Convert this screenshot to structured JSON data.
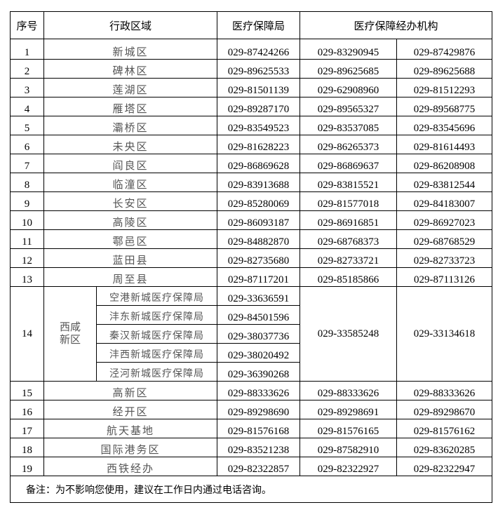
{
  "header": {
    "index": "序号",
    "region": "行政区域",
    "bureau": "医疗保障局",
    "agency": "医疗保障经办机构"
  },
  "rows": [
    {
      "no": "1",
      "name": "新城区",
      "bureau": "029-87424266",
      "agency1": "029-83290945",
      "agency2": "029-87429876"
    },
    {
      "no": "2",
      "name": "碑林区",
      "bureau": "029-89625533",
      "agency1": "029-89625685",
      "agency2": "029-89625688"
    },
    {
      "no": "3",
      "name": "莲湖区",
      "bureau": "029-81501139",
      "agency1": "029-62908960",
      "agency2": "029-81512293"
    },
    {
      "no": "4",
      "name": "雁塔区",
      "bureau": "029-89287170",
      "agency1": "029-89565327",
      "agency2": "029-89568775"
    },
    {
      "no": "5",
      "name": "灞桥区",
      "bureau": "029-83549523",
      "agency1": "029-83537085",
      "agency2": "029-83545696"
    },
    {
      "no": "6",
      "name": "未央区",
      "bureau": "029-81628223",
      "agency1": "029-86265373",
      "agency2": "029-81614493"
    },
    {
      "no": "7",
      "name": "阎良区",
      "bureau": "029-86869628",
      "agency1": "029-86869637",
      "agency2": "029-86208908"
    },
    {
      "no": "8",
      "name": "临潼区",
      "bureau": "029-83913688",
      "agency1": "029-83815521",
      "agency2": "029-83812544"
    },
    {
      "no": "9",
      "name": "长安区",
      "bureau": "029-85280069",
      "agency1": "029-81577018",
      "agency2": "029-84183007"
    },
    {
      "no": "10",
      "name": "高陵区",
      "bureau": "029-86093187",
      "agency1": "029-86916851",
      "agency2": "029-86927023"
    },
    {
      "no": "11",
      "name": "鄠邑区",
      "bureau": "029-84882870",
      "agency1": "029-68768373",
      "agency2": "029-68768529"
    },
    {
      "no": "12",
      "name": "蓝田县",
      "bureau": "029-82735680",
      "agency1": "029-82733721",
      "agency2": "029-82733723"
    },
    {
      "no": "13",
      "name": "周至县",
      "bureau": "029-87117201",
      "agency1": "029-85185866",
      "agency2": "029-87113126"
    }
  ],
  "xixian": {
    "no": "14",
    "name_line1": "西咸",
    "name_line2": "新区",
    "subs": [
      {
        "name": "空港新城医疗保障局",
        "bureau": "029-33636591"
      },
      {
        "name": "沣东新城医疗保障局",
        "bureau": "029-84501596"
      },
      {
        "name": "秦汉新城医疗保障局",
        "bureau": "029-38037736"
      },
      {
        "name": "沣西新城医疗保障局",
        "bureau": "029-38020492"
      },
      {
        "name": "泾河新城医疗保障局",
        "bureau": "029-36390268"
      }
    ],
    "agency1": "029-33585248",
    "agency2": "029-33134618"
  },
  "rows2": [
    {
      "no": "15",
      "name": "高新区",
      "bureau": "029-88333626",
      "agency1": "029-88333626",
      "agency2": "029-88333626"
    },
    {
      "no": "16",
      "name": "经开区",
      "bureau": "029-89298690",
      "agency1": "029-89298691",
      "agency2": "029-89298670"
    },
    {
      "no": "17",
      "name": "航天基地",
      "bureau": "029-81576168",
      "agency1": "029-81576165",
      "agency2": "029-81576162"
    },
    {
      "no": "18",
      "name": "国际港务区",
      "bureau": "029-83521238",
      "agency1": "029-87582910",
      "agency2": "029-83620285"
    },
    {
      "no": "19",
      "name": "西铁经办",
      "bureau": "029-82322857",
      "agency1": "029-82322927",
      "agency2": "029-82322947"
    }
  ],
  "note": "备注：为不影响您使用，建议在工作日内通过电话咨询。"
}
